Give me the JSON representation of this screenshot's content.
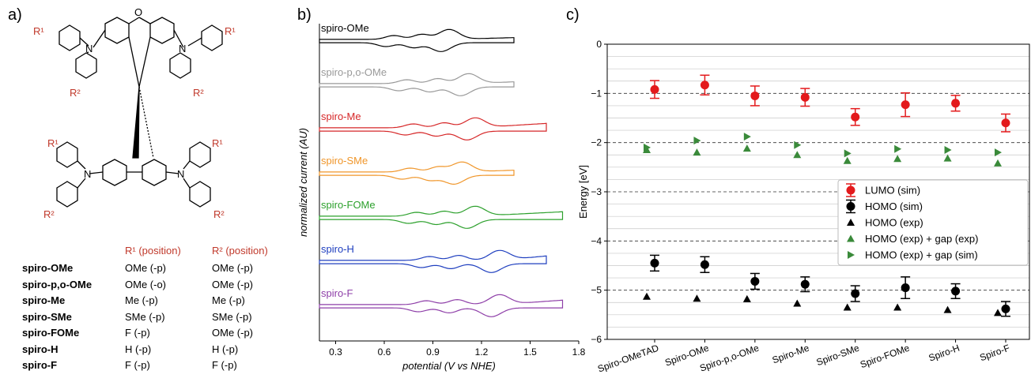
{
  "panel_labels": [
    "a)",
    "b)",
    "c)"
  ],
  "panel_a": {
    "substituent_labels": {
      "r1": "R¹",
      "r2": "R²",
      "bridge_o": "O",
      "n": "N"
    },
    "table": {
      "headers": [
        "R¹ (position)",
        "R² (position)"
      ],
      "rows": [
        {
          "name": "spiro-OMe",
          "r1": "OMe (-p)",
          "r2": "OMe (-p)"
        },
        {
          "name": "spiro-p,o-OMe",
          "r1": "OMe (-o)",
          "r2": "OMe (-p)"
        },
        {
          "name": "spiro-Me",
          "r1": "Me (-p)",
          "r2": "Me (-p)"
        },
        {
          "name": "spiro-SMe",
          "r1": "SMe (-p)",
          "r2": "SMe (-p)"
        },
        {
          "name": "spiro-FOMe",
          "r1": "F (-p)",
          "r2": "OMe (-p)"
        },
        {
          "name": "spiro-H",
          "r1": "H (-p)",
          "r2": "H (-p)"
        },
        {
          "name": "spiro-F",
          "r1": "F (-p)",
          "r2": "F (-p)"
        }
      ]
    }
  },
  "chart_data": [
    {
      "type": "line",
      "xlabel": "potential (V vs NHE)",
      "ylabel": "normalized current (AU)",
      "xlim": [
        0.2,
        1.8
      ],
      "xticks": [
        "0.3",
        "0.6",
        "0.9",
        "1.2",
        "1.5",
        "1.8"
      ],
      "series": [
        {
          "name": "spiro-OMe",
          "color": "#000000",
          "x_end": 1.4,
          "peaks": [
            0.66,
            0.83,
            1.0
          ]
        },
        {
          "name": "spiro-p,o-OMe",
          "color": "#999999",
          "x_end": 1.4,
          "peaks": [
            0.74,
            0.93,
            1.12
          ]
        },
        {
          "name": "spiro-Me",
          "color": "#d62728",
          "x_end": 1.6,
          "peaks": [
            0.78,
            0.97,
            1.16
          ]
        },
        {
          "name": "spiro-SMe",
          "color": "#f0962a",
          "x_end": 1.4,
          "peaks": [
            0.76,
            0.93,
            1.08
          ]
        },
        {
          "name": "spiro-FOMe",
          "color": "#2ca02c",
          "x_end": 1.7,
          "peaks": [
            0.8,
            0.97,
            1.16
          ]
        },
        {
          "name": "spiro-H",
          "color": "#1f3fbf",
          "x_end": 1.6,
          "peaks": [
            0.88,
            1.06,
            1.31
          ]
        },
        {
          "name": "spiro-F",
          "color": "#8e3fa8",
          "x_end": 1.7,
          "peaks": [
            0.86,
            1.05,
            1.31
          ]
        }
      ]
    },
    {
      "type": "scatter",
      "ylabel": "Energy [eV]",
      "ylim": [
        -6,
        0
      ],
      "yticks": [
        "0",
        "−1",
        "−2",
        "−3",
        "−4",
        "−5",
        "−6"
      ],
      "categories": [
        "Spiro-OMeTAD",
        "Spiro-OMe",
        "Spiro-p,o-OMe",
        "Spiro-Me",
        "Spiro-SMe",
        "Spiro-FOMe",
        "Spiro-H",
        "Spiro-F"
      ],
      "legend_position": "center-right",
      "series": [
        {
          "name": "LUMO (sim)",
          "color": "#e31a1c",
          "marker": "circle",
          "values": [
            -0.92,
            -0.83,
            -1.05,
            -1.08,
            -1.48,
            -1.23,
            -1.2,
            -1.6
          ],
          "errors": [
            0.18,
            0.2,
            0.2,
            0.18,
            0.17,
            0.24,
            0.16,
            0.18
          ]
        },
        {
          "name": "HOMO (sim)",
          "color": "#000000",
          "marker": "circle",
          "values": [
            -4.45,
            -4.48,
            -4.82,
            -4.88,
            -5.07,
            -4.95,
            -5.02,
            -5.38
          ],
          "errors": [
            0.16,
            0.16,
            0.16,
            0.15,
            0.16,
            0.22,
            0.15,
            0.15
          ]
        },
        {
          "name": "HOMO (exp)",
          "color": "#000000",
          "marker": "triangle-up",
          "values": [
            -5.13,
            -5.17,
            -5.18,
            -5.27,
            -5.35,
            -5.35,
            -5.4,
            -5.46
          ]
        },
        {
          "name": "HOMO (exp) + gap (exp)",
          "color": "#3a8a3a",
          "marker": "triangle-up",
          "values": [
            -2.15,
            -2.2,
            -2.12,
            -2.25,
            -2.37,
            -2.33,
            -2.32,
            -2.42
          ]
        },
        {
          "name": "HOMO (exp) + gap (sim)",
          "color": "#3a8a3a",
          "marker": "triangle-right",
          "values": [
            -2.1,
            -1.96,
            -1.88,
            -2.05,
            -2.22,
            -2.13,
            -2.15,
            -2.2
          ]
        }
      ]
    }
  ]
}
